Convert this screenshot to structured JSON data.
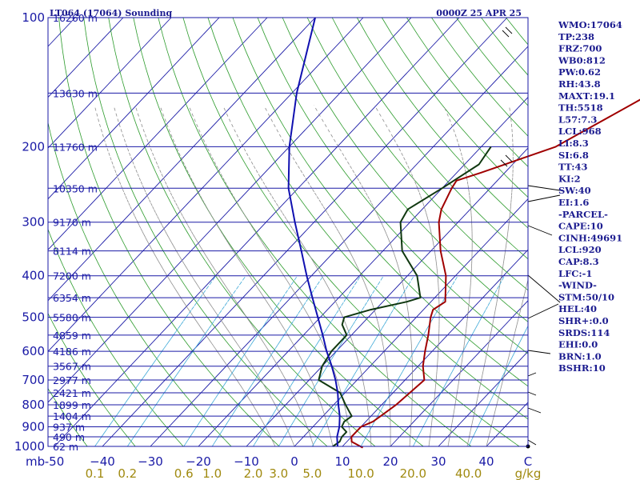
{
  "chart_data": {
    "type": "line",
    "title": "LT064 (17064) Sounding",
    "valid_time": "0000Z 25 APR 25",
    "pressure_levels": [
      100,
      200,
      300,
      400,
      500,
      600,
      700,
      800,
      900,
      1000
    ],
    "pressure_tick_labels": [
      "100",
      "200",
      "300",
      "400",
      "500",
      "600",
      "700",
      "800",
      "900",
      "1000"
    ],
    "temperature_ticks": [
      -50,
      -40,
      -30,
      -20,
      -10,
      0,
      10,
      20,
      30,
      40
    ],
    "temperature_tick_labels": [
      "-50",
      "−40",
      "−30",
      "−20",
      "−10",
      "0",
      "10",
      "20",
      "30",
      "40"
    ],
    "temperature_unit": "C",
    "pressure_unit": "mb",
    "mixing_ratio_labels": [
      "0.1",
      "0.2",
      "0.6",
      "1.0",
      "2.0",
      "3.0",
      "5.0",
      "10.0",
      "20.0",
      "40.0"
    ],
    "mixing_ratio_unit": "g/kg",
    "height_labels": [
      {
        "p": 100,
        "label": "16260 m"
      },
      {
        "p": 150,
        "label": "13630 m"
      },
      {
        "p": 200,
        "label": "11760 m"
      },
      {
        "p": 250,
        "label": "10350 m"
      },
      {
        "p": 300,
        "label": "9170 m"
      },
      {
        "p": 350,
        "label": "8114 m"
      },
      {
        "p": 400,
        "label": "7200 m"
      },
      {
        "p": 450,
        "label": "6354 m"
      },
      {
        "p": 500,
        "label": "5580 m"
      },
      {
        "p": 550,
        "label": "4859 m"
      },
      {
        "p": 600,
        "label": "4186 m"
      },
      {
        "p": 650,
        "label": "3567 m"
      },
      {
        "p": 700,
        "label": "2977 m"
      },
      {
        "p": 750,
        "label": "2421 m"
      },
      {
        "p": 800,
        "label": "1899 m"
      },
      {
        "p": 850,
        "label": "1404 m"
      },
      {
        "p": 900,
        "label": "937 m"
      },
      {
        "p": 950,
        "label": "490 m"
      },
      {
        "p": 1000,
        "label": "62 m"
      }
    ],
    "series": [
      {
        "role": "temperature",
        "color": "#a00000",
        "points": [
          [
            1007,
            14.5
          ],
          [
            975,
            11
          ],
          [
            950,
            10
          ],
          [
            925,
            10
          ],
          [
            900,
            10
          ],
          [
            875,
            11.5
          ],
          [
            850,
            12
          ],
          [
            800,
            13
          ],
          [
            750,
            13.5
          ],
          [
            700,
            14
          ],
          [
            650,
            11
          ],
          [
            600,
            8.5
          ],
          [
            550,
            6
          ],
          [
            500,
            3
          ],
          [
            480,
            2
          ],
          [
            460,
            3
          ],
          [
            400,
            -2
          ],
          [
            350,
            -8
          ],
          [
            300,
            -14
          ],
          [
            280,
            -16
          ],
          [
            250,
            -18
          ],
          [
            240,
            -18.5
          ],
          [
            230,
            -15
          ],
          [
            200,
            -4.5
          ],
          [
            180,
            -1
          ],
          [
            150,
            5
          ],
          [
            120,
            14
          ],
          [
            100,
            22
          ]
        ]
      },
      {
        "role": "dewpoint",
        "color": "#103810",
        "points": [
          [
            1000,
            8
          ],
          [
            975,
            8.5
          ],
          [
            950,
            8
          ],
          [
            925,
            8
          ],
          [
            900,
            6
          ],
          [
            875,
            5.5
          ],
          [
            850,
            6
          ],
          [
            800,
            2.5
          ],
          [
            750,
            -1
          ],
          [
            700,
            -8
          ],
          [
            650,
            -10
          ],
          [
            600,
            -11
          ],
          [
            550,
            -11
          ],
          [
            520,
            -14
          ],
          [
            500,
            -15
          ],
          [
            480,
            -11
          ],
          [
            460,
            -5
          ],
          [
            450,
            -3
          ],
          [
            400,
            -8
          ],
          [
            350,
            -16
          ],
          [
            300,
            -22
          ],
          [
            280,
            -23
          ],
          [
            250,
            -20
          ],
          [
            220,
            -17
          ],
          [
            200,
            -18
          ]
        ]
      },
      {
        "role": "parcel",
        "color": "#1010b0",
        "points": [
          [
            1000,
            9
          ],
          [
            950,
            7
          ],
          [
            900,
            5.5
          ],
          [
            850,
            3.5
          ],
          [
            800,
            1
          ],
          [
            750,
            -1.5
          ],
          [
            700,
            -4.5
          ],
          [
            650,
            -8
          ],
          [
            600,
            -12
          ],
          [
            550,
            -16
          ],
          [
            500,
            -20.5
          ],
          [
            450,
            -25.5
          ],
          [
            400,
            -31
          ],
          [
            350,
            -37
          ],
          [
            300,
            -44
          ],
          [
            250,
            -52
          ],
          [
            200,
            -60
          ],
          [
            150,
            -69
          ],
          [
            100,
            -80
          ]
        ]
      }
    ],
    "indices": [
      "WMO:17064",
      "TP:238",
      "FRZ:700",
      "WB0:812",
      "PW:0.62",
      "RH:43.8",
      "MAXT:19.1",
      "TH:5518",
      "L57:7.3",
      "LCL:968",
      "LI:8.3",
      "SI:6.8",
      "TT:43",
      "KI:2",
      "SW:40",
      "EI:1.6",
      "-PARCEL-",
      "CAPE:10",
      "CINH:49691",
      "LCL:920",
      "CAP:8.3",
      "LFC:-1",
      "-WIND-",
      "STM:50/10",
      "HEL:40",
      "SHR+:0.0",
      "SRDS:114",
      "EHI:0.0",
      "BRN:1.0",
      "BSHR:10"
    ],
    "colors": {
      "isobar": "#1a1aa6",
      "isotherm": "#1a1aa6",
      "dry_adiabat": "#2a9a2a",
      "moist_adiabat": "#8c8c8c",
      "mixing_ratio": "#3aa7d6",
      "temperature": "#a00000",
      "dewpoint": "#103810",
      "parcel": "#1010b0",
      "text": "#1b1b8f"
    }
  }
}
